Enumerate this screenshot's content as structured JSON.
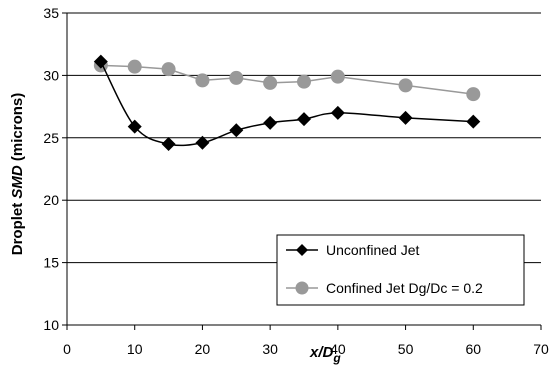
{
  "chart_data": {
    "type": "line",
    "xlim": [
      0,
      70
    ],
    "ylim": [
      10,
      35
    ],
    "x_ticks": [
      "0",
      "10",
      "20",
      "30",
      "40",
      "50",
      "60",
      "70"
    ],
    "y_ticks": [
      "10",
      "15",
      "20",
      "25",
      "30",
      "35"
    ],
    "xlabel": {
      "main": "x/D",
      "sub": "g"
    },
    "ylabel": {
      "pre": "Droplet ",
      "italic": "SMD",
      "post": " (microns)"
    },
    "grid": "horizontal",
    "legend_position": "bottom-right",
    "series": [
      {
        "name": "Unconfined Jet",
        "marker": "diamond",
        "color": "#000000",
        "line": "smooth",
        "x": [
          5,
          10,
          15,
          20,
          25,
          30,
          35,
          40,
          50,
          60
        ],
        "y": [
          31.1,
          25.9,
          24.5,
          24.6,
          25.6,
          26.2,
          26.5,
          27.0,
          26.6,
          26.3
        ]
      },
      {
        "name": "Confined Jet Dg/Dc = 0.2",
        "marker": "circle",
        "color": "#999999",
        "line": "straight",
        "x": [
          5,
          10,
          15,
          20,
          25,
          30,
          35,
          40,
          50,
          60
        ],
        "y": [
          30.8,
          30.7,
          30.5,
          29.6,
          29.8,
          29.4,
          29.5,
          29.9,
          29.2,
          28.5
        ]
      }
    ]
  }
}
